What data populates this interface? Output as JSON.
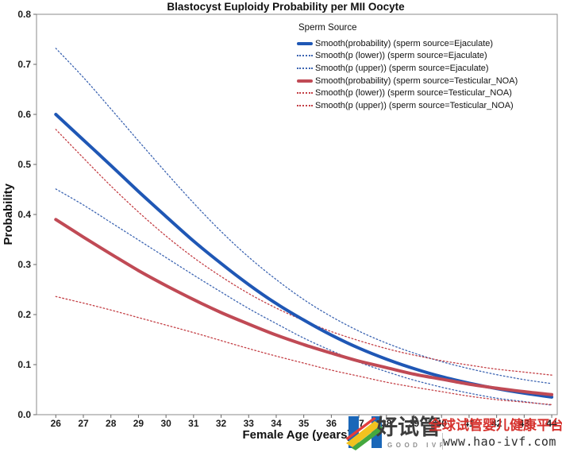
{
  "chart_data": {
    "type": "line",
    "title": "Blastocyst Euploidy Probability per MII Oocyte",
    "xlabel": "Female Age (years)",
    "ylabel": "Probability",
    "legend_title": "Sperm Source",
    "legend_position": "top-center-inside",
    "grid": false,
    "frame": true,
    "xlim": [
      25.3,
      44.2
    ],
    "ylim": [
      0,
      0.8
    ],
    "xticks": [
      26,
      27,
      28,
      29,
      30,
      31,
      32,
      33,
      34,
      35,
      36,
      37,
      38,
      39,
      40,
      41,
      42,
      43,
      44
    ],
    "yticks": [
      0,
      0.1,
      0.2,
      0.3,
      0.4,
      0.5,
      0.6,
      0.7,
      0.8
    ],
    "x": [
      26,
      27,
      28,
      29,
      30,
      31,
      32,
      33,
      34,
      35,
      36,
      37,
      38,
      39,
      40,
      41,
      42,
      43,
      44
    ],
    "series": [
      {
        "name": "Smooth(probability) (sperm source=Ejaculate)",
        "color": "#1f57b5",
        "style": "solid",
        "width": 4,
        "values": [
          0.6,
          0.549,
          0.498,
          0.446,
          0.396,
          0.347,
          0.302,
          0.26,
          0.222,
          0.189,
          0.159,
          0.133,
          0.111,
          0.092,
          0.076,
          0.063,
          0.052,
          0.043,
          0.035
        ]
      },
      {
        "name": "Smooth(p (lower)) (sperm source=Ejaculate)",
        "color": "#3d65b2",
        "style": "dotted",
        "width": 1.3,
        "values": [
          0.451,
          0.419,
          0.384,
          0.349,
          0.314,
          0.279,
          0.245,
          0.212,
          0.182,
          0.153,
          0.128,
          0.105,
          0.086,
          0.069,
          0.055,
          0.043,
          0.033,
          0.026,
          0.019
        ]
      },
      {
        "name": "Smooth(p (upper)) (sperm source=Ejaculate)",
        "color": "#3d65b2",
        "style": "dotted",
        "width": 1.3,
        "values": [
          0.732,
          0.674,
          0.611,
          0.547,
          0.484,
          0.423,
          0.366,
          0.315,
          0.27,
          0.23,
          0.196,
          0.167,
          0.143,
          0.123,
          0.106,
          0.092,
          0.08,
          0.07,
          0.062
        ]
      },
      {
        "name": "Smooth(probability) (sperm source=Testicular_NOA)",
        "color": "#c04a55",
        "style": "solid",
        "width": 4,
        "values": [
          0.39,
          0.355,
          0.321,
          0.288,
          0.258,
          0.23,
          0.204,
          0.181,
          0.159,
          0.14,
          0.123,
          0.107,
          0.094,
          0.081,
          0.071,
          0.061,
          0.053,
          0.046,
          0.04
        ]
      },
      {
        "name": "Smooth(p (lower)) (sperm source=Testicular_NOA)",
        "color": "#c44046",
        "style": "dotted",
        "width": 1.3,
        "values": [
          0.236,
          0.223,
          0.209,
          0.194,
          0.179,
          0.164,
          0.148,
          0.132,
          0.117,
          0.103,
          0.089,
          0.077,
          0.065,
          0.055,
          0.046,
          0.037,
          0.03,
          0.025,
          0.02
        ]
      },
      {
        "name": "Smooth(p (upper)) (sperm source=Testicular_NOA)",
        "color": "#c44046",
        "style": "dotted",
        "width": 1.3,
        "values": [
          0.57,
          0.513,
          0.457,
          0.405,
          0.357,
          0.314,
          0.276,
          0.242,
          0.213,
          0.188,
          0.166,
          0.148,
          0.132,
          0.119,
          0.108,
          0.099,
          0.091,
          0.085,
          0.079
        ]
      }
    ]
  },
  "watermark": {
    "brand_cn": "好试管",
    "brand_en": "GOOD IVF",
    "tagline": "全球试管婴儿健康平台",
    "url": "www.hao-ivf.com",
    "logo_blue": "#1a67b8",
    "tagline_color": "#d6322e"
  }
}
